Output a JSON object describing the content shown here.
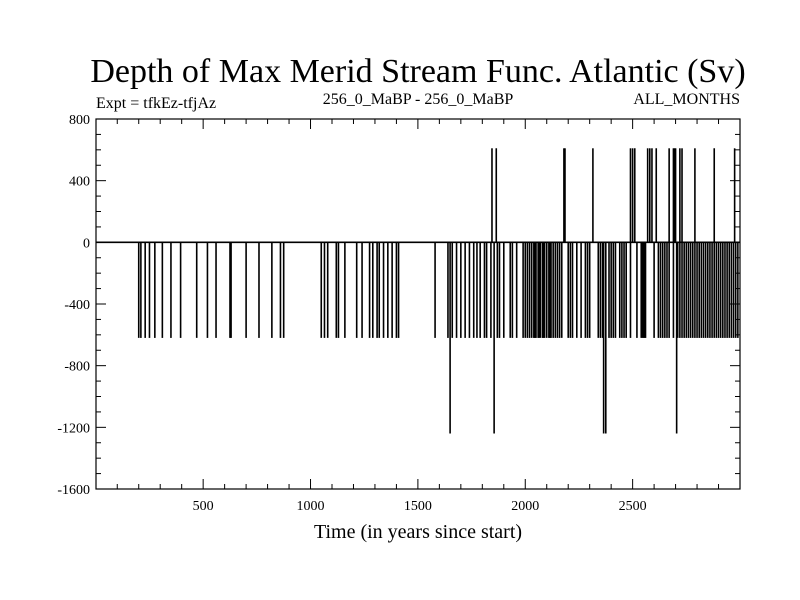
{
  "chart_data": {
    "type": "line",
    "title": "Depth of Max Merid Stream Func. Atlantic (Sv)",
    "subtitle_left": "Expt = tfkEz-tfjAz",
    "subtitle_center": "256_0_MaBP - 256_0_MaBP",
    "subtitle_right": "ALL_MONTHS",
    "xlabel": "Time (in years since start)",
    "ylabel": "",
    "xlim": [
      1,
      3000
    ],
    "ylim": [
      -1600,
      800
    ],
    "x_ticks": [
      500,
      1000,
      1500,
      2000,
      2500
    ],
    "y_ticks": [
      800,
      400,
      0,
      -400,
      -800,
      -1200,
      -1600
    ],
    "grid": false,
    "baseline": 0,
    "series": [
      {
        "spikes_neg620": [
          200,
          210,
          230,
          250,
          275,
          310,
          350,
          395,
          470,
          520,
          560,
          625,
          630,
          700,
          760,
          820,
          860,
          875,
          1050,
          1065,
          1080,
          1120,
          1130,
          1160,
          1215,
          1240,
          1275,
          1290,
          1310,
          1320,
          1340,
          1360,
          1380,
          1400,
          1410,
          1580,
          1640,
          1660,
          1680,
          1700,
          1720,
          1740,
          1760,
          1775,
          1790,
          1810,
          1820,
          1840,
          1870,
          1880,
          1900,
          1930,
          1940,
          1960,
          1990,
          2000,
          2010,
          2020,
          2030,
          2040,
          2045,
          2050,
          2060,
          2065,
          2070,
          2080,
          2085,
          2090,
          2100,
          2110,
          2115,
          2120,
          2130,
          2140,
          2150,
          2160,
          2170,
          2200,
          2210,
          2220,
          2240,
          2260,
          2280,
          2290,
          2300,
          2340,
          2350,
          2360,
          2390,
          2400,
          2410,
          2420,
          2440,
          2450,
          2460,
          2470,
          2490,
          2520,
          2540,
          2545,
          2550,
          2555,
          2560,
          2600,
          2620,
          2630,
          2640,
          2650,
          2660,
          2670,
          2690,
          2710,
          2720,
          2730,
          2740,
          2750,
          2760,
          2770,
          2780,
          2790,
          2800,
          2810,
          2820,
          2830,
          2840,
          2850,
          2860,
          2870,
          2880,
          2890,
          2900,
          2910,
          2920,
          2930,
          2940,
          2950,
          2960,
          2970,
          2980,
          2990
        ],
        "spikes_neg1240": [
          1650,
          1855,
          2365,
          2375,
          2705
        ],
        "spikes_pos610": [
          1845,
          1865,
          2180,
          2185,
          2315,
          2490,
          2500,
          2510,
          2570,
          2580,
          2590,
          2610,
          2670,
          2690,
          2695,
          2700,
          2720,
          2730,
          2790,
          2880,
          2975
        ]
      }
    ]
  }
}
